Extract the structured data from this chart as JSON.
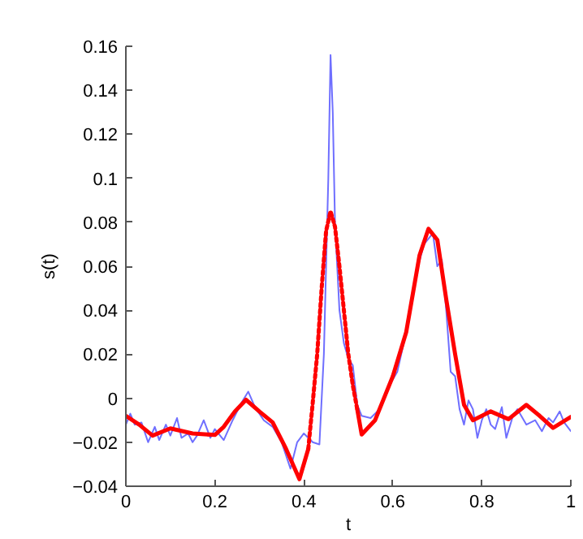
{
  "chart_data": {
    "type": "line",
    "xlabel": "t",
    "ylabel": "s(t)",
    "xlim": [
      0,
      1
    ],
    "xticks": [
      0,
      0.2,
      0.4,
      0.6,
      0.8,
      1
    ],
    "ylim": [
      -0.04,
      0.16
    ],
    "yticks": [
      {
        "value": -0.04,
        "label": "−0.04"
      },
      {
        "value": -0.02,
        "label": "−0.02"
      },
      0,
      0.02,
      0.04,
      0.06,
      0.08,
      0.1,
      0.12,
      0.14,
      0.16
    ],
    "grid": false,
    "marker": "none",
    "series": [
      {
        "color": "#6f6fff",
        "line_style": "solid",
        "x": [
          0,
          0.01,
          0.02,
          0.035,
          0.05,
          0.065,
          0.075,
          0.09,
          0.1,
          0.115,
          0.125,
          0.14,
          0.15,
          0.16,
          0.175,
          0.19,
          0.2,
          0.22,
          0.24,
          0.26,
          0.275,
          0.29,
          0.31,
          0.33,
          0.35,
          0.37,
          0.385,
          0.4,
          0.42,
          0.435,
          0.445,
          0.455,
          0.46,
          0.465,
          0.47,
          0.48,
          0.49,
          0.5,
          0.51,
          0.52,
          0.53,
          0.55,
          0.57,
          0.59,
          0.61,
          0.63,
          0.65,
          0.67,
          0.69,
          0.7,
          0.71,
          0.72,
          0.73,
          0.74,
          0.75,
          0.76,
          0.77,
          0.78,
          0.79,
          0.8,
          0.81,
          0.82,
          0.83,
          0.845,
          0.855,
          0.87,
          0.88,
          0.9,
          0.92,
          0.935,
          0.95,
          0.96,
          0.975,
          0.985,
          1
        ],
        "values": [
          -0.012,
          -0.007,
          -0.012,
          -0.011,
          -0.02,
          -0.013,
          -0.019,
          -0.012,
          -0.017,
          -0.009,
          -0.018,
          -0.016,
          -0.02,
          -0.017,
          -0.01,
          -0.018,
          -0.014,
          -0.019,
          -0.01,
          -0.002,
          0.003,
          -0.004,
          -0.01,
          -0.013,
          -0.02,
          -0.032,
          -0.02,
          -0.016,
          -0.02,
          -0.021,
          0.02,
          0.1,
          0.156,
          0.13,
          0.08,
          0.04,
          0.025,
          0.018,
          0.015,
          -0.003,
          -0.008,
          -0.009,
          -0.005,
          0.005,
          0.012,
          0.03,
          0.055,
          0.07,
          0.075,
          0.06,
          0.063,
          0.04,
          0.012,
          0.01,
          -0.005,
          -0.012,
          -0.001,
          -0.005,
          -0.018,
          -0.01,
          -0.005,
          -0.012,
          -0.014,
          -0.004,
          -0.018,
          -0.008,
          -0.005,
          -0.012,
          -0.01,
          -0.015,
          -0.009,
          -0.011,
          -0.006,
          -0.011,
          -0.015
        ]
      },
      {
        "color": "#ff0000",
        "line_style": "solid",
        "x": [
          0,
          0.03,
          0.06,
          0.1,
          0.15,
          0.2,
          0.22,
          0.245,
          0.27,
          0.3,
          0.33,
          0.36,
          0.39,
          0.41,
          0.46,
          0.52,
          0.53,
          0.56,
          0.58,
          0.6,
          0.63,
          0.66,
          0.68,
          0.7,
          0.72,
          0.74,
          0.76,
          0.78,
          0.82,
          0.86,
          0.9,
          0.93,
          0.96,
          1
        ],
        "values": [
          -0.008,
          -0.012,
          -0.017,
          -0.0137,
          -0.016,
          -0.0167,
          -0.013,
          -0.006,
          -0.0007,
          -0.006,
          -0.011,
          -0.023,
          -0.0368,
          -0.023,
          null,
          -0.005,
          -0.0165,
          -0.01,
          0.0,
          0.01,
          0.03,
          0.065,
          0.077,
          0.072,
          0.045,
          0.02,
          -0.003,
          -0.01,
          -0.006,
          -0.0095,
          -0.003,
          -0.008,
          -0.0135,
          -0.0085
        ]
      },
      {
        "color": "#ff0000",
        "line_style": "dotted",
        "x": [
          0.41,
          0.42,
          0.43,
          0.44,
          0.45,
          0.46,
          0.47,
          0.48,
          0.49,
          0.5,
          0.51,
          0.52
        ],
        "values": [
          -0.023,
          -0.002,
          0.02,
          0.05,
          0.076,
          0.085,
          0.078,
          0.06,
          0.04,
          0.02,
          0.006,
          -0.005
        ]
      }
    ]
  }
}
